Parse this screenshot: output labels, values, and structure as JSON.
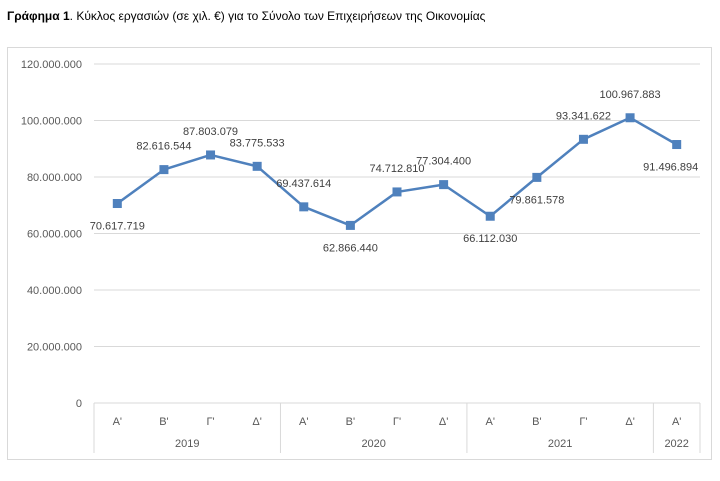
{
  "title": {
    "bold": "Γράφημα 1",
    "rest": ". Κύκλος εργασιών (σε χιλ. €) για το Σύνολο των Επιχειρήσεων της Οικονομίας"
  },
  "chart_data": {
    "type": "line",
    "title": "Γράφημα 1. Κύκλος εργασιών (σε χιλ. €) για το Σύνολο των Επιχειρήσεων της Οικονομίας",
    "xlabel": "",
    "ylabel": "",
    "ylim": [
      0,
      120000000
    ],
    "yticks": [
      0,
      20000000,
      40000000,
      60000000,
      80000000,
      100000000,
      120000000
    ],
    "ytick_labels": [
      "0",
      "20.000.000",
      "40.000.000",
      "60.000.000",
      "80.000.000",
      "100.000.000",
      "120.000.000"
    ],
    "grid": true,
    "categories": [
      "Α'",
      "Β'",
      "Γ'",
      "Δ'",
      "Α'",
      "Β'",
      "Γ'",
      "Δ'",
      "Α'",
      "Β'",
      "Γ'",
      "Δ'",
      "Α'"
    ],
    "groups": [
      {
        "label": "2019",
        "count": 4
      },
      {
        "label": "2020",
        "count": 4
      },
      {
        "label": "2021",
        "count": 4
      },
      {
        "label": "2022",
        "count": 1
      }
    ],
    "series": [
      {
        "name": "Κύκλος εργασιών",
        "color": "#4f81bd",
        "values": [
          70617719,
          82616544,
          87803079,
          83775533,
          69437614,
          62866440,
          74712810,
          77304400,
          66112030,
          79861578,
          93341622,
          100967883,
          91496894
        ],
        "labels": [
          "70.617.719",
          "82.616.544",
          "87.803.079",
          "83.775.533",
          "69.437.614",
          "62.866.440",
          "74.712.810",
          "77.304.400",
          "66.112.030",
          "79.861.578",
          "93.341.622",
          "100.967.883",
          "91.496.894"
        ],
        "label_position": [
          "below",
          "above",
          "above",
          "above",
          "above",
          "below",
          "above",
          "above",
          "below",
          "below",
          "above",
          "above",
          "below"
        ]
      }
    ]
  }
}
